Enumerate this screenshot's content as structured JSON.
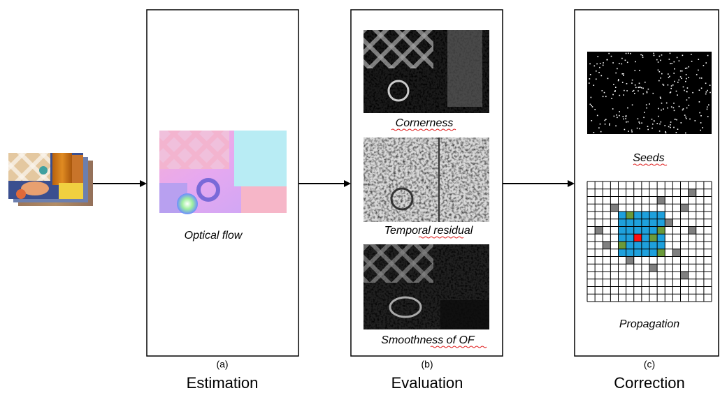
{
  "panels": [
    {
      "label": "(a)",
      "title": "Estimation",
      "items": [
        "Optical flow"
      ]
    },
    {
      "label": "(b)",
      "title": "Evaluation",
      "items": [
        "Cornerness",
        "Temporal residual",
        "Smoothness of OF"
      ]
    },
    {
      "label": "(c)",
      "title": "Correction",
      "items": [
        "Seeds",
        "Propagation"
      ]
    }
  ]
}
